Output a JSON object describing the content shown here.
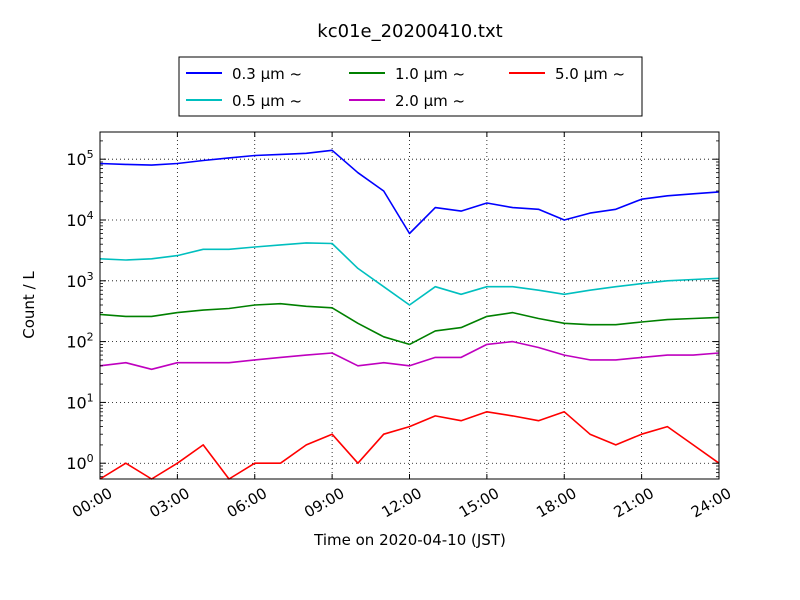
{
  "chart_data": {
    "type": "line",
    "title": "kc01e_20200410.txt",
    "xlabel": "Time on 2020-04-10 (JST)",
    "ylabel": "Count / L",
    "yscale": "log",
    "ylim": [
      0.55,
      280000
    ],
    "xlim": [
      "00:00",
      "24:00"
    ],
    "x_ticks": [
      "00:00",
      "03:00",
      "06:00",
      "09:00",
      "12:00",
      "15:00",
      "18:00",
      "21:00",
      "24:00"
    ],
    "y_ticks": [
      {
        "base": "10",
        "exp": "0",
        "value": 1
      },
      {
        "base": "10",
        "exp": "1",
        "value": 10
      },
      {
        "base": "10",
        "exp": "2",
        "value": 100
      },
      {
        "base": "10",
        "exp": "3",
        "value": 1000
      },
      {
        "base": "10",
        "exp": "4",
        "value": 10000
      },
      {
        "base": "10",
        "exp": "5",
        "value": 100000
      }
    ],
    "grid": true,
    "legend_position": "top",
    "series": [
      {
        "name": "0.3 μm  ~",
        "color": "#0000ff",
        "x": [
          "00:00",
          "01:00",
          "02:00",
          "03:00",
          "04:00",
          "05:00",
          "06:00",
          "07:00",
          "08:00",
          "09:00",
          "10:00",
          "11:00",
          "12:00",
          "13:00",
          "14:00",
          "15:00",
          "16:00",
          "17:00",
          "18:00",
          "19:00",
          "20:00",
          "21:00",
          "22:00",
          "23:00",
          "24:00"
        ],
        "values": [
          85000,
          82000,
          80000,
          85000,
          95000,
          105000,
          115000,
          120000,
          125000,
          140000,
          60000,
          30000,
          6000,
          16000,
          14000,
          19000,
          16000,
          15000,
          10000,
          13000,
          15000,
          22000,
          25000,
          27000,
          29000
        ]
      },
      {
        "name": "0.5 μm  ~",
        "color": "#00bfbf",
        "x": [
          "00:00",
          "01:00",
          "02:00",
          "03:00",
          "04:00",
          "05:00",
          "06:00",
          "07:00",
          "08:00",
          "09:00",
          "10:00",
          "11:00",
          "12:00",
          "13:00",
          "14:00",
          "15:00",
          "16:00",
          "17:00",
          "18:00",
          "19:00",
          "20:00",
          "21:00",
          "22:00",
          "23:00",
          "24:00"
        ],
        "values": [
          2300,
          2200,
          2300,
          2600,
          3300,
          3300,
          3600,
          3900,
          4200,
          4100,
          1600,
          800,
          400,
          800,
          600,
          800,
          800,
          700,
          600,
          700,
          800,
          900,
          1000,
          1050,
          1100
        ]
      },
      {
        "name": "1.0 μm  ~",
        "color": "#008000",
        "x": [
          "00:00",
          "01:00",
          "02:00",
          "03:00",
          "04:00",
          "05:00",
          "06:00",
          "07:00",
          "08:00",
          "09:00",
          "10:00",
          "11:00",
          "12:00",
          "13:00",
          "14:00",
          "15:00",
          "16:00",
          "17:00",
          "18:00",
          "19:00",
          "20:00",
          "21:00",
          "22:00",
          "23:00",
          "24:00"
        ],
        "values": [
          280,
          260,
          260,
          300,
          330,
          350,
          400,
          420,
          380,
          360,
          200,
          120,
          90,
          150,
          170,
          260,
          300,
          240,
          200,
          190,
          190,
          210,
          230,
          240,
          250
        ]
      },
      {
        "name": "2.0 μm  ~",
        "color": "#bf00bf",
        "x": [
          "00:00",
          "01:00",
          "02:00",
          "03:00",
          "04:00",
          "05:00",
          "06:00",
          "07:00",
          "08:00",
          "09:00",
          "10:00",
          "11:00",
          "12:00",
          "13:00",
          "14:00",
          "15:00",
          "16:00",
          "17:00",
          "18:00",
          "19:00",
          "20:00",
          "21:00",
          "22:00",
          "23:00",
          "24:00"
        ],
        "values": [
          40,
          45,
          35,
          45,
          45,
          45,
          50,
          55,
          60,
          65,
          40,
          45,
          40,
          55,
          55,
          90,
          100,
          80,
          60,
          50,
          50,
          55,
          60,
          60,
          65
        ]
      },
      {
        "name": "5.0 μm  ~",
        "color": "#ff0000",
        "x": [
          "00:00",
          "01:00",
          "02:00",
          "03:00",
          "04:00",
          "05:00",
          "06:00",
          "07:00",
          "08:00",
          "09:00",
          "10:00",
          "11:00",
          "12:00",
          "13:00",
          "14:00",
          "15:00",
          "16:00",
          "17:00",
          "18:00",
          "19:00",
          "20:00",
          "21:00",
          "22:00",
          "23:00",
          "24:00"
        ],
        "values": [
          0.5,
          1,
          0.5,
          1,
          2,
          0.5,
          1,
          1,
          2,
          3,
          1,
          3,
          4,
          6,
          5,
          7,
          6,
          5,
          7,
          3,
          2,
          3,
          4,
          2,
          1
        ]
      }
    ]
  }
}
